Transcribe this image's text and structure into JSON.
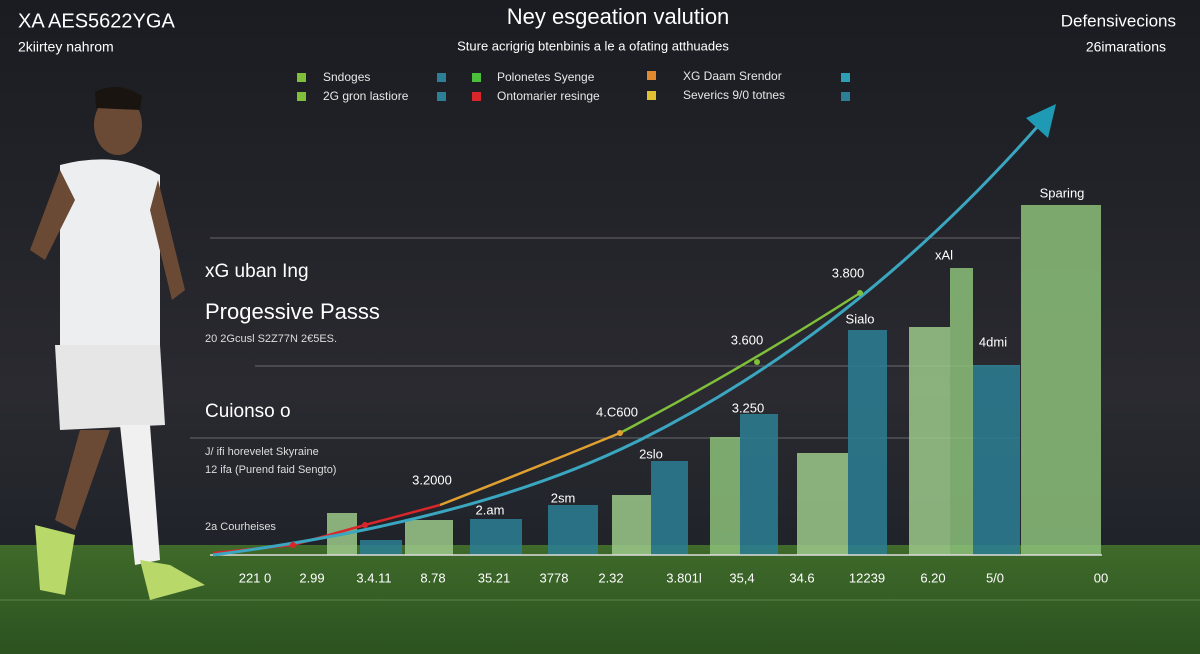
{
  "header": {
    "brand": "XA AES5622YGA",
    "brand_sub": "2kiirtey nahrom",
    "title": "Ney esgeation valution",
    "subtitle": "Sture acrigrig btenbinis a le a ofating atthuades",
    "right_title": "Defensivecions",
    "right_sub": "26imarations"
  },
  "legend": [
    "Sndoges",
    "2G gron lastiore",
    "Polonetes Syenge",
    "Ontomarier resinge",
    "XG Daam Srendor",
    "Severics 9/0 totnes"
  ],
  "left_panel": {
    "heading": "xG uban Ing",
    "title": "Progessive Passs",
    "note": "20 2Gcusl S2Z77N 2€5ES.",
    "section": "Cuionso o",
    "line1": "J/ ifi horevelet Skyraine",
    "line2": "12 ifa (Purend faid Sengto)",
    "footer": "2a Courheises"
  },
  "annotations": [
    "Sparing",
    "xAl",
    "3.800",
    "Sialo",
    "4dmi",
    "3.600",
    "4.C600",
    "3.250",
    "2slo",
    "3.2000",
    "2sm",
    "2.am"
  ],
  "x_labels": [
    "221 0",
    "2.99",
    "3.4.11",
    "8.78",
    "35.21",
    "3778",
    "2.32",
    "3.801l",
    "35,4",
    "34.6",
    "12239",
    "6.20",
    "5/0",
    "00"
  ]
}
